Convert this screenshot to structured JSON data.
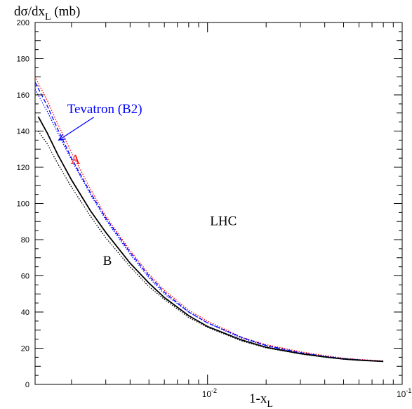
{
  "chart_data": {
    "type": "line",
    "y_axis_title": {
      "base": "dσ/dx",
      "sub": "L",
      "tail": " (mb)"
    },
    "x_axis_title": {
      "base": "1-x",
      "sub": "L"
    },
    "xscale": "log",
    "xlim": [
      0.0013,
      0.1
    ],
    "ylim": [
      0,
      200
    ],
    "grid": false,
    "y_ticks": [
      0,
      20,
      40,
      60,
      80,
      100,
      120,
      140,
      160,
      180,
      200
    ],
    "x_tick_labels": [
      {
        "value": 0.01,
        "base": "10",
        "exp": "-2"
      },
      {
        "value": 0.1,
        "base": "10",
        "exp": "-1"
      }
    ],
    "annotations": {
      "tevatron": {
        "text": "Tevatron (B2)",
        "color": "#0000ff",
        "x": 0.0019,
        "y": 150,
        "arrow_to": [
          0.00172,
          135
        ]
      },
      "A": {
        "text": "A",
        "color": "#ff0000",
        "x": 0.00198,
        "y": 122
      },
      "B": {
        "text": "B",
        "color": "#000000",
        "x": 0.0029,
        "y": 66
      },
      "LHC": {
        "text": "LHC",
        "color": "#000000",
        "x": 0.0103,
        "y": 88
      }
    },
    "series": [
      {
        "id": "A-red-dotted",
        "color": "#ff0000",
        "style": "dotted",
        "x": [
          0.0013,
          0.0015,
          0.0017,
          0.002,
          0.0025,
          0.003,
          0.004,
          0.005,
          0.006,
          0.008,
          0.01,
          0.015,
          0.02,
          0.03,
          0.04,
          0.05,
          0.06,
          0.08
        ],
        "y": [
          170,
          157,
          144,
          128,
          108,
          93,
          74,
          61,
          52,
          41,
          35,
          26,
          22,
          18,
          16,
          14.5,
          13.8,
          13
        ]
      },
      {
        "id": "B2-blue-dashed",
        "color": "#0000ff",
        "style": "dashed",
        "x": [
          0.0013,
          0.0015,
          0.0017,
          0.002,
          0.0025,
          0.003,
          0.004,
          0.005,
          0.006,
          0.008,
          0.01,
          0.015,
          0.02,
          0.03,
          0.04,
          0.05,
          0.06,
          0.08
        ],
        "y": [
          167,
          154,
          141,
          125,
          106,
          92,
          73,
          60,
          51,
          40,
          34,
          26,
          21.5,
          17.5,
          15.5,
          14.3,
          13.6,
          12.8
        ]
      },
      {
        "id": "blue-dotted",
        "color": "#0000ff",
        "style": "dotted",
        "x": [
          0.0013,
          0.0015,
          0.0017,
          0.002,
          0.0025,
          0.003,
          0.004,
          0.005,
          0.006,
          0.008,
          0.01,
          0.015,
          0.02,
          0.03,
          0.04,
          0.05,
          0.06,
          0.08
        ],
        "y": [
          163,
          151,
          139,
          124,
          105,
          91,
          72,
          59,
          50,
          40,
          34,
          25.5,
          21.3,
          17.3,
          15.4,
          14.2,
          13.5,
          12.7
        ]
      },
      {
        "id": "B-black-solid",
        "color": "#000000",
        "style": "solid",
        "x": [
          0.00135,
          0.0015,
          0.0017,
          0.002,
          0.0025,
          0.003,
          0.004,
          0.005,
          0.006,
          0.008,
          0.01,
          0.015,
          0.02,
          0.03,
          0.04,
          0.05,
          0.06,
          0.08
        ],
        "y": [
          148,
          139,
          127,
          113,
          96,
          84,
          67,
          56,
          48,
          38,
          32,
          24.5,
          20.5,
          17,
          15.2,
          14,
          13.4,
          12.7
        ]
      },
      {
        "id": "black-dotted",
        "color": "#000000",
        "style": "dotted",
        "x": [
          0.00135,
          0.0015,
          0.0017,
          0.002,
          0.0025,
          0.003,
          0.004,
          0.005,
          0.006,
          0.008,
          0.01,
          0.015,
          0.02,
          0.03,
          0.04,
          0.05,
          0.06,
          0.08
        ],
        "y": [
          140,
          133,
          122,
          109,
          93,
          81,
          65,
          54,
          47,
          37,
          31.5,
          24,
          20.2,
          16.8,
          15,
          13.9,
          13.3,
          12.6
        ]
      }
    ]
  }
}
